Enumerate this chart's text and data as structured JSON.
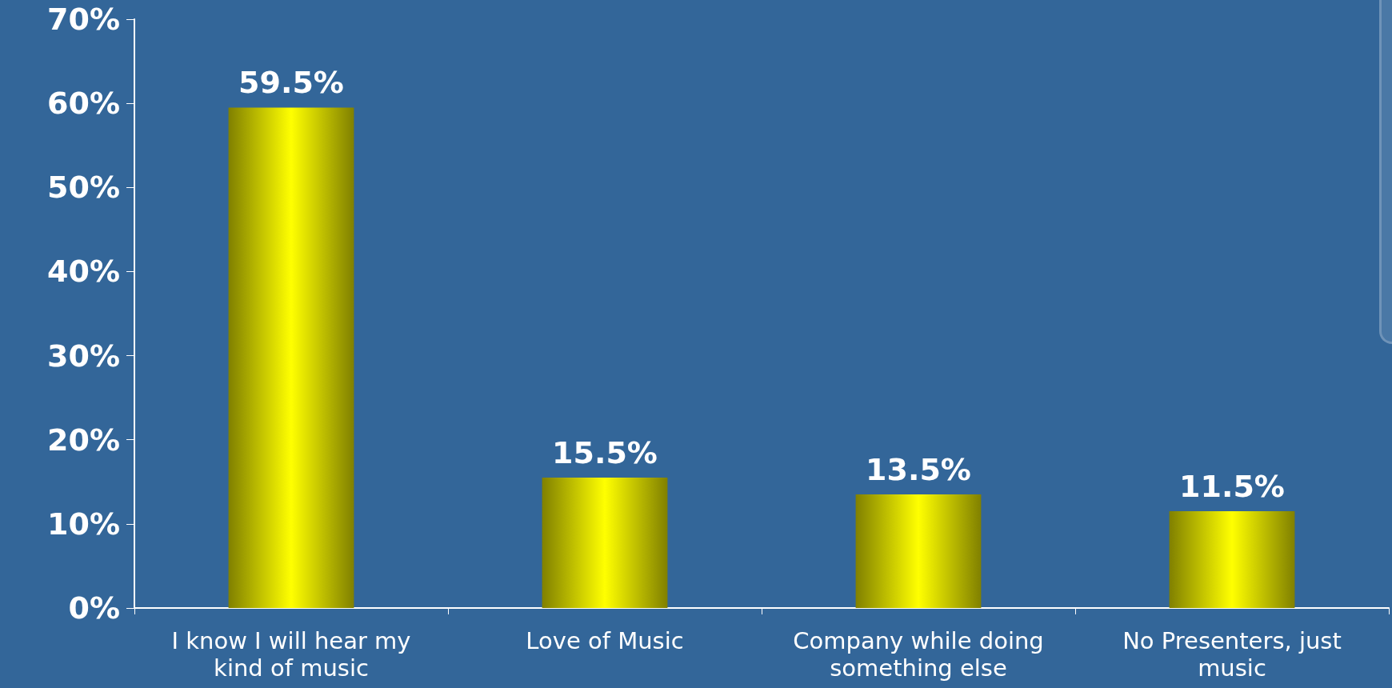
{
  "chart_data": {
    "type": "bar",
    "categories": [
      "I know I will hear my\nkind of music",
      "Love of Music",
      "Company while doing\nsomething else",
      "No Presenters, just\nmusic"
    ],
    "values": [
      59.5,
      15.5,
      13.5,
      11.5
    ],
    "value_labels": [
      "59.5%",
      "15.5%",
      "13.5%",
      "11.5%"
    ],
    "color": "#ffff00",
    "ylim": [
      0,
      70
    ],
    "yticks": [
      {
        "value": 0,
        "label": "0%"
      },
      {
        "value": 10,
        "label": "10%"
      },
      {
        "value": 20,
        "label": "20%"
      },
      {
        "value": 30,
        "label": "30%"
      },
      {
        "value": 40,
        "label": "40%"
      },
      {
        "value": 50,
        "label": "50%"
      },
      {
        "value": 60,
        "label": "60%"
      },
      {
        "value": 70,
        "label": "70%"
      }
    ],
    "grid": false
  }
}
